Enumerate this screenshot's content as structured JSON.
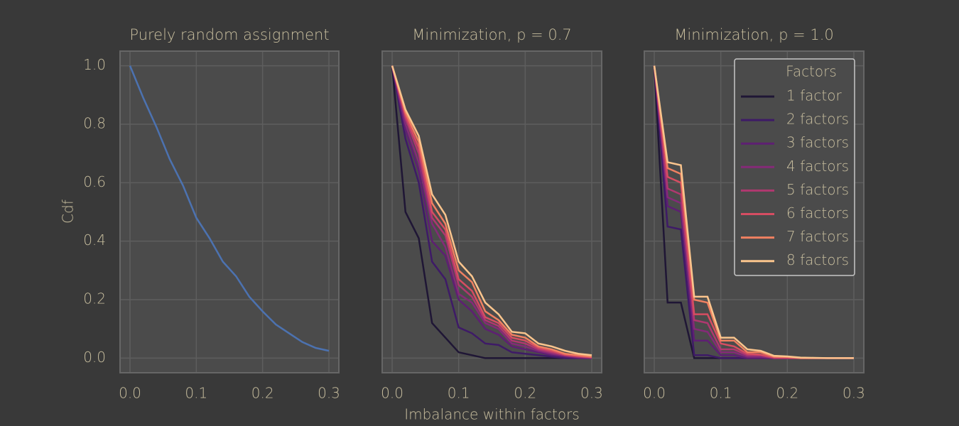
{
  "chart_data": [
    {
      "type": "line",
      "title": "Purely random assignment",
      "ylabel": "Cdf",
      "x": [
        0,
        0.02,
        0.04,
        0.06,
        0.08,
        0.1,
        0.12,
        0.14,
        0.16,
        0.18,
        0.2,
        0.22,
        0.24,
        0.26,
        0.28,
        0.3
      ],
      "series": [
        {
          "color": "#4c72b0",
          "values": [
            1.0,
            0.89,
            0.79,
            0.68,
            0.59,
            0.48,
            0.41,
            0.33,
            0.28,
            0.21,
            0.16,
            0.115,
            0.085,
            0.055,
            0.035,
            0.025
          ]
        }
      ],
      "xlim": [
        -0.015,
        0.315
      ],
      "ylim": [
        -0.05,
        1.05
      ],
      "xticks": [
        {
          "value": 0,
          "label": "0.0"
        },
        0.1,
        0.2,
        0.3
      ],
      "yticks": [
        {
          "value": 0,
          "label": "0.0"
        },
        0.2,
        0.4,
        0.6,
        0.8,
        {
          "value": 1,
          "label": "1.0"
        }
      ],
      "grid": true
    },
    {
      "type": "line",
      "title": "Minimization, p = 0.7",
      "xlabel": "Imbalance within factors",
      "x": [
        0,
        0.02,
        0.04,
        0.06,
        0.08,
        0.1,
        0.12,
        0.14,
        0.16,
        0.18,
        0.2,
        0.22,
        0.24,
        0.26,
        0.28,
        0.3
      ],
      "series": [
        {
          "color": "#1f1635",
          "values": [
            1.0,
            0.5,
            0.41,
            0.12,
            0.07,
            0.02,
            0.01,
            0,
            0,
            0,
            0,
            0,
            0,
            0,
            0,
            0
          ]
        },
        {
          "color": "#3e1a67",
          "values": [
            1.0,
            0.75,
            0.6,
            0.33,
            0.27,
            0.105,
            0.085,
            0.05,
            0.045,
            0.02,
            0.015,
            0.01,
            0.005,
            0,
            0,
            0
          ]
        },
        {
          "color": "#5e1f73",
          "values": [
            1.0,
            0.78,
            0.64,
            0.4,
            0.35,
            0.2,
            0.16,
            0.1,
            0.08,
            0.04,
            0.03,
            0.02,
            0.01,
            0.005,
            0,
            0
          ]
        },
        {
          "color": "#852a78",
          "values": [
            1.0,
            0.8,
            0.67,
            0.46,
            0.38,
            0.22,
            0.19,
            0.12,
            0.1,
            0.05,
            0.04,
            0.025,
            0.015,
            0.008,
            0.003,
            0
          ]
        },
        {
          "color": "#b0386f",
          "values": [
            1.0,
            0.82,
            0.7,
            0.48,
            0.42,
            0.25,
            0.21,
            0.13,
            0.11,
            0.06,
            0.05,
            0.03,
            0.02,
            0.01,
            0.005,
            0.002
          ]
        },
        {
          "color": "#d64d62",
          "values": [
            1.0,
            0.83,
            0.72,
            0.5,
            0.44,
            0.27,
            0.23,
            0.14,
            0.12,
            0.07,
            0.06,
            0.035,
            0.025,
            0.012,
            0.007,
            0.003
          ]
        },
        {
          "color": "#f08061",
          "values": [
            1.0,
            0.84,
            0.74,
            0.53,
            0.46,
            0.3,
            0.26,
            0.16,
            0.13,
            0.08,
            0.07,
            0.04,
            0.03,
            0.015,
            0.01,
            0.005
          ]
        },
        {
          "color": "#fbc58d",
          "values": [
            1.0,
            0.85,
            0.76,
            0.56,
            0.49,
            0.33,
            0.28,
            0.19,
            0.15,
            0.09,
            0.085,
            0.05,
            0.04,
            0.025,
            0.015,
            0.01
          ]
        }
      ],
      "xlim": [
        -0.015,
        0.315
      ],
      "ylim": [
        -0.05,
        1.05
      ],
      "xticks": [
        {
          "value": 0,
          "label": "0.0"
        },
        0.1,
        0.2,
        0.3
      ],
      "yticks": [
        0,
        0.2,
        0.4,
        0.6,
        0.8,
        1
      ],
      "ytick_labels": false,
      "grid": true
    },
    {
      "type": "line",
      "title": "Minimization, p = 1.0",
      "legend": "upper right",
      "legend_title": "Factors",
      "x": [
        0,
        0.02,
        0.04,
        0.06,
        0.08,
        0.1,
        0.12,
        0.14,
        0.16,
        0.18,
        0.2,
        0.22,
        0.24,
        0.26,
        0.28,
        0.3
      ],
      "series": [
        {
          "name": "1 factor",
          "color": "#1f1635",
          "values": [
            1.0,
            0.19,
            0.19,
            0,
            0,
            0,
            0,
            0,
            0,
            0,
            0,
            0,
            0,
            0,
            0,
            0
          ]
        },
        {
          "name": "2 factors",
          "color": "#3e1a67",
          "values": [
            1.0,
            0.45,
            0.44,
            0.01,
            0.01,
            0,
            0,
            0,
            0,
            0,
            0,
            0,
            0,
            0,
            0,
            0
          ]
        },
        {
          "name": "3 factors",
          "color": "#5e1f73",
          "values": [
            1.0,
            0.52,
            0.5,
            0.06,
            0.06,
            0.01,
            0.01,
            0,
            0,
            0,
            0,
            0,
            0,
            0,
            0,
            0
          ]
        },
        {
          "name": "4 factors",
          "color": "#852a78",
          "values": [
            1.0,
            0.55,
            0.53,
            0.1,
            0.09,
            0.02,
            0.02,
            0.005,
            0.005,
            0,
            0,
            0,
            0,
            0,
            0,
            0
          ]
        },
        {
          "name": "5 factors",
          "color": "#b0386f",
          "values": [
            1.0,
            0.58,
            0.56,
            0.13,
            0.12,
            0.03,
            0.03,
            0.01,
            0.01,
            0,
            0,
            0,
            0,
            0,
            0,
            0
          ]
        },
        {
          "name": "6 factors",
          "color": "#d64d62",
          "values": [
            1.0,
            0.62,
            0.6,
            0.15,
            0.15,
            0.05,
            0.04,
            0.015,
            0.012,
            0.003,
            0.002,
            0,
            0,
            0,
            0,
            0
          ]
        },
        {
          "name": "7 factors",
          "color": "#f08061",
          "values": [
            1.0,
            0.65,
            0.63,
            0.2,
            0.19,
            0.06,
            0.06,
            0.02,
            0.02,
            0.005,
            0.004,
            0,
            0,
            0,
            0,
            0
          ]
        },
        {
          "name": "8 factors",
          "color": "#fbc58d",
          "values": [
            1.0,
            0.67,
            0.66,
            0.21,
            0.21,
            0.07,
            0.07,
            0.03,
            0.025,
            0.008,
            0.006,
            0.002,
            0.001,
            0,
            0,
            0
          ]
        }
      ],
      "xlim": [
        -0.015,
        0.315
      ],
      "ylim": [
        -0.05,
        1.05
      ],
      "xticks": [
        {
          "value": 0,
          "label": "0.0"
        },
        0.1,
        0.2,
        0.3
      ],
      "yticks": [
        0,
        0.2,
        0.4,
        0.6,
        0.8,
        1
      ],
      "ytick_labels": false,
      "grid": true
    }
  ]
}
